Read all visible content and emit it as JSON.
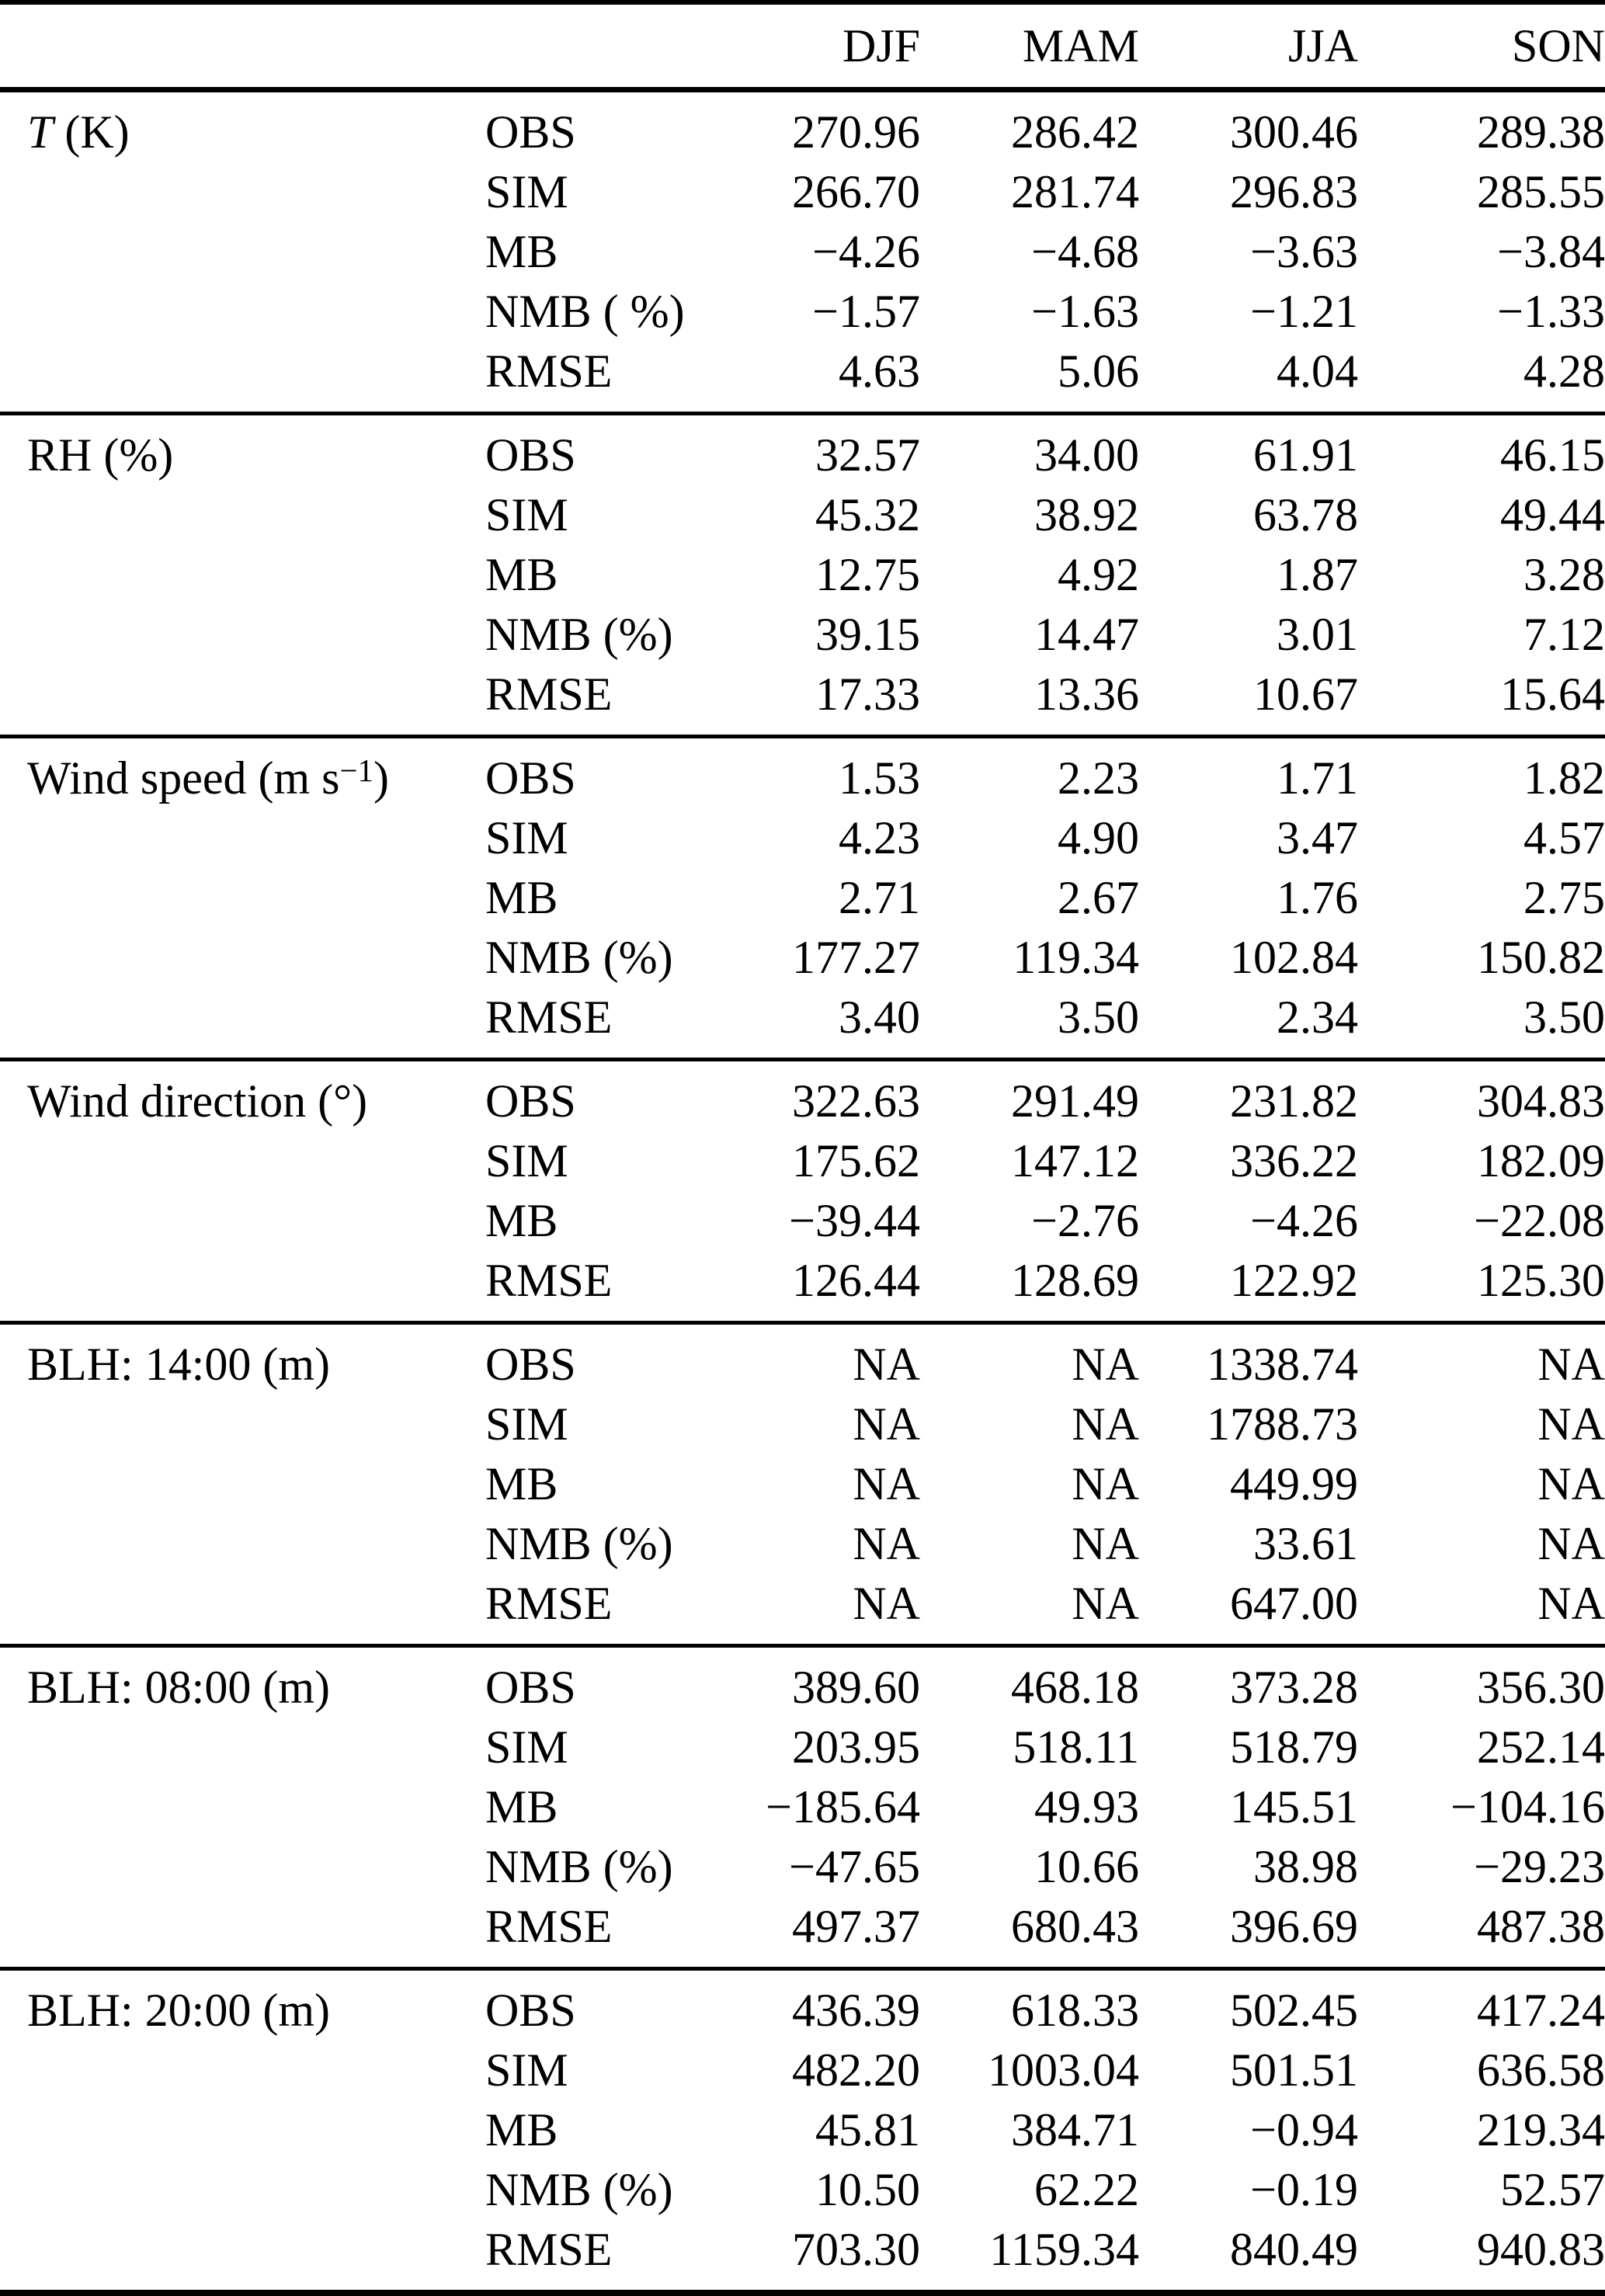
{
  "table": {
    "columns": [
      "",
      "",
      "DJF",
      "MAM",
      "JJA",
      "SON"
    ],
    "sections": [
      {
        "param": "T (K)",
        "label_parts": [
          {
            "t": "T",
            "style": "italic"
          },
          {
            "t": " (K)"
          }
        ],
        "rows": [
          {
            "stat": "OBS",
            "values": [
              "270.96",
              "286.42",
              "300.46",
              "289.38"
            ]
          },
          {
            "stat": "SIM",
            "values": [
              "266.70",
              "281.74",
              "296.83",
              "285.55"
            ]
          },
          {
            "stat": "MB",
            "values": [
              "−4.26",
              "−4.68",
              "−3.63",
              "−3.84"
            ]
          },
          {
            "stat": "NMB ( %)",
            "values": [
              "−1.57",
              "−1.63",
              "−1.21",
              "−1.33"
            ]
          },
          {
            "stat": "RMSE",
            "values": [
              "4.63",
              "5.06",
              "4.04",
              "4.28"
            ]
          }
        ]
      },
      {
        "param": "RH (%)",
        "label_parts": [
          {
            "t": "RH (%)"
          }
        ],
        "rows": [
          {
            "stat": "OBS",
            "values": [
              "32.57",
              "34.00",
              "61.91",
              "46.15"
            ]
          },
          {
            "stat": "SIM",
            "values": [
              "45.32",
              "38.92",
              "63.78",
              "49.44"
            ]
          },
          {
            "stat": "MB",
            "values": [
              "12.75",
              "4.92",
              "1.87",
              "3.28"
            ]
          },
          {
            "stat": "NMB (%)",
            "values": [
              "39.15",
              "14.47",
              "3.01",
              "7.12"
            ]
          },
          {
            "stat": "RMSE",
            "values": [
              "17.33",
              "13.36",
              "10.67",
              "15.64"
            ]
          }
        ]
      },
      {
        "param": "Wind speed (m s−1)",
        "label_parts": [
          {
            "t": "Wind speed (m s"
          },
          {
            "t": "−1",
            "style": "sup"
          },
          {
            "t": ")"
          }
        ],
        "rows": [
          {
            "stat": "OBS",
            "values": [
              "1.53",
              "2.23",
              "1.71",
              "1.82"
            ]
          },
          {
            "stat": "SIM",
            "values": [
              "4.23",
              "4.90",
              "3.47",
              "4.57"
            ]
          },
          {
            "stat": "MB",
            "values": [
              "2.71",
              "2.67",
              "1.76",
              "2.75"
            ]
          },
          {
            "stat": "NMB (%)",
            "values": [
              "177.27",
              "119.34",
              "102.84",
              "150.82"
            ]
          },
          {
            "stat": "RMSE",
            "values": [
              "3.40",
              "3.50",
              "2.34",
              "3.50"
            ]
          }
        ]
      },
      {
        "param": "Wind direction (°)",
        "label_parts": [
          {
            "t": "Wind direction (°)"
          }
        ],
        "rows": [
          {
            "stat": "OBS",
            "values": [
              "322.63",
              "291.49",
              "231.82",
              "304.83"
            ]
          },
          {
            "stat": "SIM",
            "values": [
              "175.62",
              "147.12",
              "336.22",
              "182.09"
            ]
          },
          {
            "stat": "MB",
            "values": [
              "−39.44",
              "−2.76",
              "−4.26",
              "−22.08"
            ]
          },
          {
            "stat": "RMSE",
            "values": [
              "126.44",
              "128.69",
              "122.92",
              "125.30"
            ]
          }
        ]
      },
      {
        "param": "BLH: 14:00 (m)",
        "label_parts": [
          {
            "t": "BLH: 14:00 (m)"
          }
        ],
        "rows": [
          {
            "stat": "OBS",
            "values": [
              "NA",
              "NA",
              "1338.74",
              "NA"
            ]
          },
          {
            "stat": "SIM",
            "values": [
              "NA",
              "NA",
              "1788.73",
              "NA"
            ]
          },
          {
            "stat": "MB",
            "values": [
              "NA",
              "NA",
              "449.99",
              "NA"
            ]
          },
          {
            "stat": "NMB (%)",
            "values": [
              "NA",
              "NA",
              "33.61",
              "NA"
            ]
          },
          {
            "stat": "RMSE",
            "values": [
              "NA",
              "NA",
              "647.00",
              "NA"
            ]
          }
        ]
      },
      {
        "param": "BLH: 08:00 (m)",
        "label_parts": [
          {
            "t": "BLH: 08:00 (m)"
          }
        ],
        "rows": [
          {
            "stat": "OBS",
            "values": [
              "389.60",
              "468.18",
              "373.28",
              "356.30"
            ]
          },
          {
            "stat": "SIM",
            "values": [
              "203.95",
              "518.11",
              "518.79",
              "252.14"
            ]
          },
          {
            "stat": "MB",
            "values": [
              "−185.64",
              "49.93",
              "145.51",
              "−104.16"
            ]
          },
          {
            "stat": "NMB (%)",
            "values": [
              "−47.65",
              "10.66",
              "38.98",
              "−29.23"
            ]
          },
          {
            "stat": "RMSE",
            "values": [
              "497.37",
              "680.43",
              "396.69",
              "487.38"
            ]
          }
        ]
      },
      {
        "param": "BLH: 20:00 (m)",
        "label_parts": [
          {
            "t": "BLH: 20:00 (m)"
          }
        ],
        "rows": [
          {
            "stat": "OBS",
            "values": [
              "436.39",
              "618.33",
              "502.45",
              "417.24"
            ]
          },
          {
            "stat": "SIM",
            "values": [
              "482.20",
              "1003.04",
              "501.51",
              "636.58"
            ]
          },
          {
            "stat": "MB",
            "values": [
              "45.81",
              "384.71",
              "−0.94",
              "219.34"
            ]
          },
          {
            "stat": "NMB (%)",
            "values": [
              "10.50",
              "62.22",
              "−0.19",
              "52.57"
            ]
          },
          {
            "stat": "RMSE",
            "values": [
              "703.30",
              "1159.34",
              "840.49",
              "940.83"
            ]
          }
        ]
      }
    ]
  }
}
